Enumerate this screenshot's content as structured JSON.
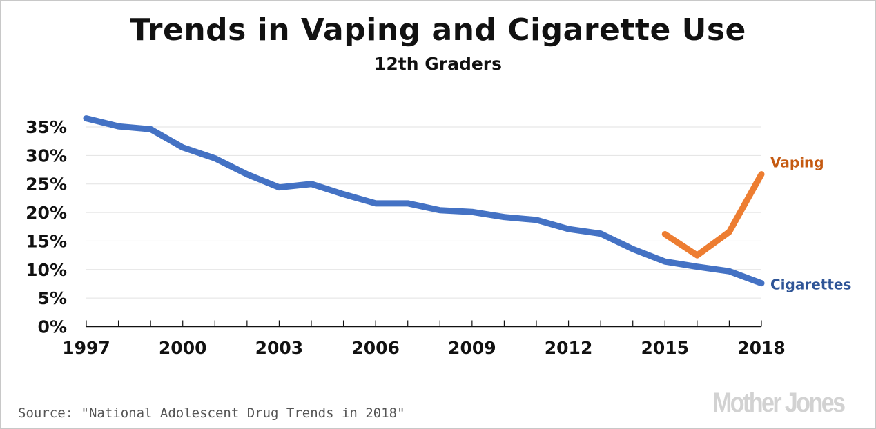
{
  "chart_data": {
    "type": "line",
    "title": "Trends in Vaping and Cigarette Use",
    "subtitle": "12th Graders",
    "xlabel": "",
    "ylabel": "",
    "x": [
      1997,
      1998,
      1999,
      2000,
      2001,
      2002,
      2003,
      2004,
      2005,
      2006,
      2007,
      2008,
      2009,
      2010,
      2011,
      2012,
      2013,
      2014,
      2015,
      2016,
      2017,
      2018
    ],
    "x_tick_labels": [
      "1997",
      "2000",
      "2003",
      "2006",
      "2009",
      "2012",
      "2015",
      "2018"
    ],
    "y_tick_labels": [
      "0%",
      "5%",
      "10%",
      "15%",
      "20%",
      "25%",
      "30%",
      "35%"
    ],
    "xlim": [
      1997,
      2018
    ],
    "ylim": [
      0,
      35
    ],
    "grid": "horizontal",
    "legend": "direct labels at line ends",
    "series": [
      {
        "name": "Cigarettes",
        "color": "#4472c4",
        "label_color": "#2f5597",
        "x": [
          1997,
          1998,
          1999,
          2000,
          2001,
          2002,
          2003,
          2004,
          2005,
          2006,
          2007,
          2008,
          2009,
          2010,
          2011,
          2012,
          2013,
          2014,
          2015,
          2016,
          2017,
          2018
        ],
        "values": [
          36.5,
          35.1,
          34.6,
          31.4,
          29.5,
          26.7,
          24.4,
          25.0,
          23.2,
          21.6,
          21.6,
          20.4,
          20.1,
          19.2,
          18.7,
          17.1,
          16.3,
          13.6,
          11.4,
          10.5,
          9.7,
          7.6
        ]
      },
      {
        "name": "Vaping",
        "color": "#ed7d31",
        "label_color": "#c55a11",
        "x": [
          2015,
          2016,
          2017,
          2018
        ],
        "values": [
          16.2,
          12.5,
          16.6,
          26.7
        ]
      }
    ]
  },
  "source": "Source: \"National Adolescent Drug Trends in 2018\"",
  "logo": "Mother Jones"
}
